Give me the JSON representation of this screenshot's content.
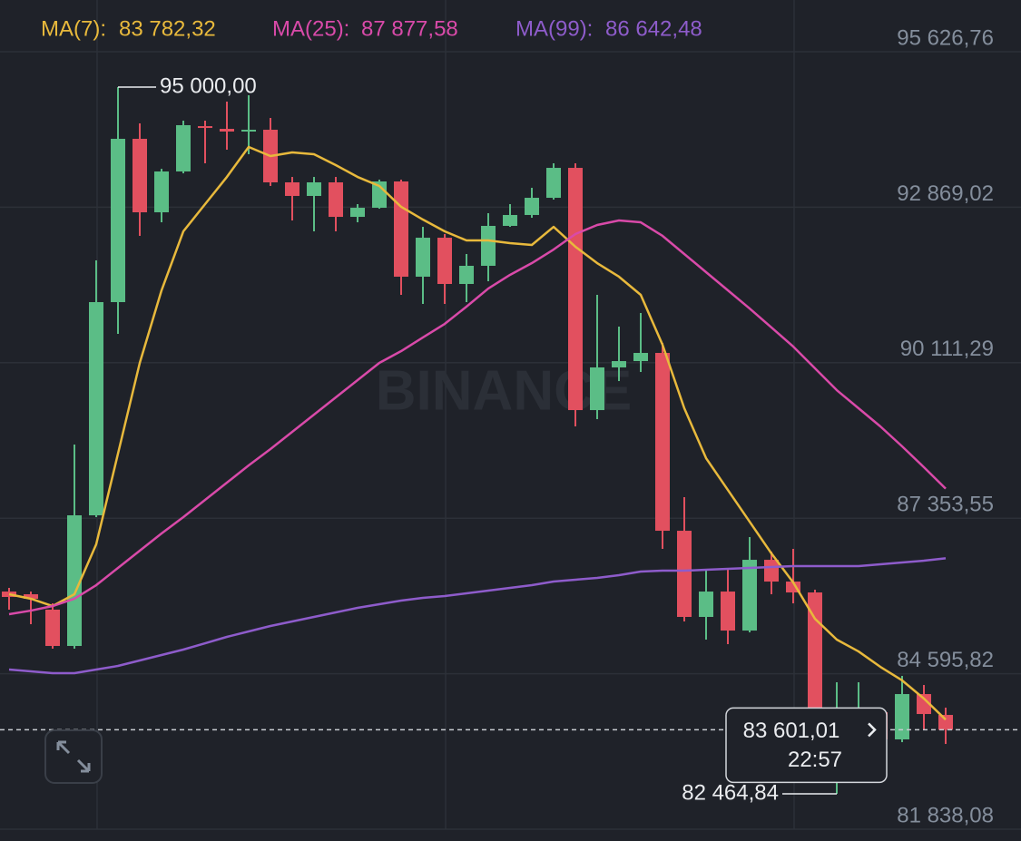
{
  "chart_data": {
    "type": "candlestick",
    "watermark": "BINANCE",
    "ylim": [
      81629,
      96544
    ],
    "yticks": [
      {
        "value": 95626.76,
        "label": "95 626,76"
      },
      {
        "value": 92869.02,
        "label": "92 869,02"
      },
      {
        "value": 90111.29,
        "label": "90 111,29"
      },
      {
        "value": 87353.55,
        "label": "87 353,55"
      },
      {
        "value": 84595.82,
        "label": "84 595,82"
      },
      {
        "value": 81838.08,
        "label": "81 838,08"
      }
    ],
    "grid": true,
    "up_color": "#5bbd86",
    "down_color": "#e2505f",
    "open": [
      86053,
      86005,
      85732,
      85088,
      87405,
      91186,
      94082,
      92779,
      93503,
      94307,
      94259,
      94211,
      94243,
      93310,
      93069,
      93310,
      92698,
      92859,
      93326,
      91637,
      92328,
      91508,
      91830,
      92538,
      92731,
      93036,
      93567,
      89271,
      90028,
      90140,
      90285,
      87131,
      85603,
      86053,
      85361,
      86616,
      86230,
      86037,
      83382,
      83913,
      83913,
      83431,
      84235,
      83865
    ],
    "high": [
      86118,
      86053,
      85844,
      88660,
      91926,
      95000,
      94356,
      93550,
      94404,
      94404,
      94742,
      94855,
      94452,
      93406,
      93406,
      93406,
      92924,
      93358,
      93358,
      92521,
      92393,
      92039,
      92763,
      92924,
      93213,
      93648,
      93648,
      91315,
      90752,
      90993,
      90462,
      87727,
      86439,
      86439,
      87019,
      86761,
      86810,
      86085,
      84444,
      84444,
      83994,
      84557,
      84396,
      83994
    ],
    "low": [
      85732,
      85474,
      85040,
      85040,
      87373,
      90623,
      92361,
      92602,
      93470,
      93648,
      93889,
      93809,
      93246,
      92634,
      92441,
      92441,
      92602,
      92843,
      91315,
      91154,
      91154,
      91186,
      91556,
      92521,
      92682,
      93004,
      88982,
      89110,
      89786,
      89947,
      86810,
      85522,
      85201,
      85120,
      85329,
      86005,
      85844,
      82674,
      82464.84,
      83672,
      83350,
      83382,
      83592,
      83350
    ],
    "close": [
      85957,
      85925,
      85088,
      87405,
      91186,
      94082,
      92779,
      93503,
      94324,
      94275,
      94211,
      94243,
      93310,
      93069,
      93310,
      92698,
      92859,
      93326,
      91637,
      92328,
      91508,
      91830,
      92538,
      92731,
      93036,
      93567,
      89271,
      90028,
      90140,
      90285,
      87131,
      85603,
      86053,
      85361,
      86616,
      86230,
      86037,
      82707,
      83913,
      83946,
      83431,
      84235,
      83881,
      83601.01
    ],
    "high_labels": [
      null,
      null,
      null,
      null,
      null,
      "95 000,00",
      null,
      null,
      null,
      null,
      null,
      null,
      null,
      null,
      null,
      null,
      null,
      null,
      null,
      null,
      null,
      null,
      null,
      null,
      null,
      null,
      null,
      null,
      null,
      null,
      null,
      null,
      null,
      null,
      null,
      null,
      null,
      null,
      null,
      null,
      null,
      null,
      null,
      null
    ],
    "low_labels": [
      null,
      null,
      null,
      null,
      null,
      null,
      null,
      null,
      null,
      null,
      null,
      null,
      null,
      null,
      null,
      null,
      null,
      null,
      null,
      null,
      null,
      null,
      null,
      null,
      null,
      null,
      null,
      null,
      null,
      null,
      null,
      null,
      null,
      null,
      null,
      null,
      null,
      null,
      "82 464,84",
      null,
      null,
      null,
      null,
      null
    ],
    "close_labels": [
      null,
      null,
      null,
      null,
      null,
      null,
      null,
      null,
      null,
      null,
      null,
      null,
      null,
      null,
      null,
      null,
      null,
      null,
      null,
      null,
      null,
      null,
      null,
      null,
      null,
      null,
      null,
      null,
      null,
      null,
      null,
      null,
      null,
      null,
      null,
      null,
      null,
      null,
      null,
      null,
      null,
      null,
      null,
      "83 601,01"
    ],
    "countdown": "22:57",
    "series": [
      {
        "name": "MA(7):",
        "color": "#e8b93c",
        "current_label": "83 782,32",
        "values": [
          86005,
          85925,
          85796,
          86005,
          86890,
          88499,
          90108,
          91395,
          92441,
          92924,
          93406,
          93937,
          93777,
          93841,
          93809,
          93616,
          93406,
          93246,
          92876,
          92650,
          92441,
          92280,
          92280,
          92232,
          92200,
          92521,
          92168,
          91878,
          91637,
          91315,
          90430,
          89304,
          88418,
          87855,
          87292,
          86729,
          86214,
          85570,
          85201,
          84991,
          84718,
          84477,
          84155,
          83782.32
        ]
      },
      {
        "name": "MA(25):",
        "color": "#d94aa9",
        "current_label": "87 877,58",
        "values": [
          85651,
          85715,
          85796,
          85925,
          86166,
          86472,
          86778,
          87083,
          87373,
          87678,
          87984,
          88290,
          88580,
          88885,
          89191,
          89497,
          89802,
          90108,
          90317,
          90559,
          90800,
          91106,
          91427,
          91669,
          91878,
          92119,
          92393,
          92554,
          92634,
          92602,
          92361,
          92039,
          91717,
          91395,
          91073,
          90736,
          90398,
          90011,
          89625,
          89304,
          88982,
          88628,
          88258,
          87877.58
        ]
      },
      {
        "name": "MA(99):",
        "color": "#8e5ccb",
        "current_label": "86 642,48",
        "values": [
          84670,
          84637,
          84605,
          84605,
          84670,
          84734,
          84831,
          84927,
          85024,
          85136,
          85249,
          85346,
          85442,
          85523,
          85603,
          85683,
          85764,
          85828,
          85892,
          85941,
          85973,
          86021,
          86069,
          86118,
          86166,
          86230,
          86263,
          86295,
          86343,
          86407,
          86423,
          86423,
          86440,
          86456,
          86472,
          86488,
          86504,
          86504,
          86504,
          86504,
          86536,
          86568,
          86600,
          86642.48
        ]
      }
    ]
  }
}
